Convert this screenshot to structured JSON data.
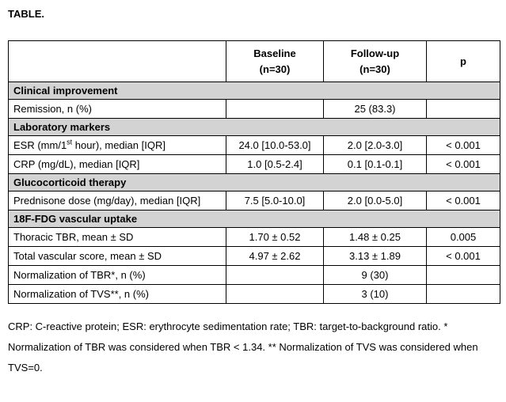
{
  "title": "TABLE.",
  "table": {
    "headers": {
      "baseline_line1": "Baseline",
      "baseline_line2": "(n=30)",
      "followup_line1": "Follow-up",
      "followup_line2": "(n=30)",
      "p": "p"
    },
    "rows": [
      {
        "type": "section",
        "label": "Clinical improvement"
      },
      {
        "type": "data",
        "label": "Remission, n (%)",
        "baseline": "",
        "followup": "25 (83.3)",
        "p": ""
      },
      {
        "type": "section",
        "label": "Laboratory markers"
      },
      {
        "type": "data",
        "label_pre": "ESR (mm/1",
        "label_sup": "st",
        "label_post": " hour), median [IQR]",
        "baseline": "24.0 [10.0-53.0]",
        "followup": "2.0 [2.0-3.0]",
        "p": "< 0.001"
      },
      {
        "type": "data",
        "label": "CRP (mg/dL), median [IQR]",
        "baseline": "1.0 [0.5-2.4]",
        "followup": "0.1 [0.1-0.1]",
        "p": "< 0.001"
      },
      {
        "type": "section",
        "label": "Glucocorticoid therapy"
      },
      {
        "type": "data",
        "label": "Prednisone dose (mg/day), median [IQR]",
        "baseline": "7.5 [5.0-10.0]",
        "followup": "2.0 [0.0-5.0]",
        "p": "< 0.001"
      },
      {
        "type": "section",
        "label": "18F-FDG vascular uptake"
      },
      {
        "type": "data",
        "label": "Thoracic TBR, mean ± SD",
        "baseline": "1.70 ± 0.52",
        "followup": "1.48 ± 0.25",
        "p": "0.005"
      },
      {
        "type": "data",
        "label": "Total vascular score, mean ± SD",
        "baseline": "4.97 ± 2.62",
        "followup": "3.13 ± 1.89",
        "p": "< 0.001"
      },
      {
        "type": "data",
        "label": "Normalization of TBR*, n (%)",
        "baseline": "",
        "followup": "9 (30)",
        "p": ""
      },
      {
        "type": "data",
        "label": "Normalization of TVS**, n (%)",
        "baseline": "",
        "followup": "3 (10)",
        "p": ""
      }
    ]
  },
  "footnote": "CRP: C-reactive protein; ESR: erythrocyte sedimentation rate; TBR: target-to-background ratio. * Normalization of TBR was considered when TBR < 1.34. ** Normalization of TVS was considered when TVS=0.",
  "colors": {
    "section_bg": "#d3d3d3",
    "border": "#000000",
    "background": "#ffffff"
  }
}
